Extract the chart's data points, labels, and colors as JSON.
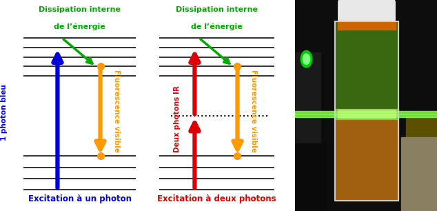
{
  "bg_color": "#ffffff",
  "fig_width": 6.34,
  "fig_height": 3.06,
  "colors": {
    "blue": "#0000dd",
    "orange": "#ff9900",
    "red": "#dd0000",
    "green": "#00aa00",
    "black": "#111111",
    "line_color": "#222222"
  },
  "left_panel": {
    "title_line1": "Dissipation interne",
    "title_line2": "de l’énergie",
    "title_color": "#00aa00",
    "left_label": "1 photon bleu",
    "left_label_color": "#0000dd",
    "right_label": "Fluorescence visible",
    "right_label_color": "#ff9900",
    "bottom_label": "Excitation à un photon",
    "bottom_label_color": "#0000dd"
  },
  "right_panel": {
    "title_line1": "Dissipation interne",
    "title_line2": "de l’énergie",
    "title_color": "#00aa00",
    "left_label": "Deux photons IR",
    "left_label_color": "#dd0000",
    "right_label": "Fluorescence visible",
    "right_label_color": "#ff9900",
    "bottom_label": "Excitation à deux photons",
    "bottom_label_color": "#dd0000"
  }
}
